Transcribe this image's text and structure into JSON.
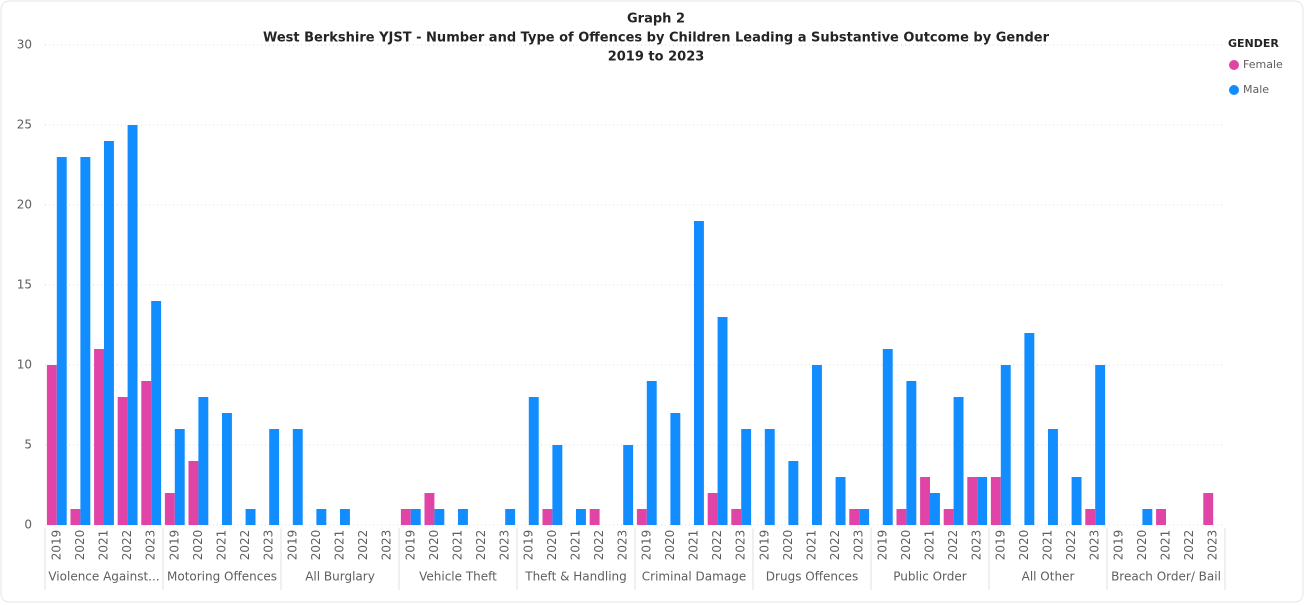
{
  "chart_data": {
    "type": "bar",
    "title": [
      "Graph 2",
      "West Berkshire YJST - Number and Type of Offences by Children Leading a Substantive Outcome by Gender",
      "2019 to 2023"
    ],
    "legend_title": "GENDER",
    "legend_position": "top-right",
    "categories": [
      {
        "group": "Violence Against...",
        "years": [
          "2019",
          "2020",
          "2021",
          "2022",
          "2023"
        ]
      },
      {
        "group": "Motoring Offences",
        "years": [
          "2019",
          "2020",
          "2021",
          "2022",
          "2023"
        ]
      },
      {
        "group": "All Burglary",
        "years": [
          "2019",
          "2020",
          "2021",
          "2022",
          "2023"
        ]
      },
      {
        "group": "Vehicle Theft",
        "years": [
          "2019",
          "2020",
          "2021",
          "2022",
          "2023"
        ]
      },
      {
        "group": "Theft & Handling",
        "years": [
          "2019",
          "2020",
          "2021",
          "2022",
          "2023"
        ]
      },
      {
        "group": "Criminal Damage",
        "years": [
          "2019",
          "2020",
          "2021",
          "2022",
          "2023"
        ]
      },
      {
        "group": "Drugs Offences",
        "years": [
          "2019",
          "2020",
          "2021",
          "2022",
          "2023"
        ]
      },
      {
        "group": "Public Order",
        "years": [
          "2019",
          "2020",
          "2021",
          "2022",
          "2023"
        ]
      },
      {
        "group": "All Other",
        "years": [
          "2019",
          "2020",
          "2021",
          "2022",
          "2023"
        ]
      },
      {
        "group": "Breach Order/ Bail",
        "years": [
          "2019",
          "2020",
          "2021",
          "2022",
          "2023"
        ]
      }
    ],
    "series": [
      {
        "name": "Female",
        "color": "#e044a7",
        "values": [
          [
            10,
            1,
            11,
            8,
            9
          ],
          [
            2,
            4,
            0,
            0,
            0
          ],
          [
            0,
            0,
            0,
            0,
            0
          ],
          [
            1,
            2,
            0,
            0,
            0
          ],
          [
            0,
            1,
            0,
            1,
            0
          ],
          [
            1,
            0,
            0,
            2,
            1
          ],
          [
            0,
            0,
            0,
            0,
            1
          ],
          [
            0,
            1,
            3,
            1,
            3
          ],
          [
            3,
            0,
            0,
            0,
            1
          ],
          [
            0,
            0,
            1,
            0,
            2
          ]
        ]
      },
      {
        "name": "Male",
        "color": "#118dff",
        "values": [
          [
            23,
            23,
            24,
            25,
            14
          ],
          [
            6,
            8,
            7,
            1,
            6
          ],
          [
            6,
            1,
            1,
            0,
            0
          ],
          [
            1,
            1,
            1,
            0,
            1
          ],
          [
            8,
            5,
            1,
            0,
            5
          ],
          [
            9,
            7,
            19,
            13,
            6
          ],
          [
            6,
            4,
            10,
            3,
            1
          ],
          [
            11,
            9,
            2,
            8,
            3
          ],
          [
            10,
            12,
            6,
            3,
            10
          ],
          [
            0,
            1,
            0,
            0,
            0
          ]
        ]
      }
    ],
    "ylim": [
      0,
      30
    ],
    "yticks": [
      0,
      5,
      10,
      15,
      20,
      25,
      30
    ],
    "grid": true
  }
}
